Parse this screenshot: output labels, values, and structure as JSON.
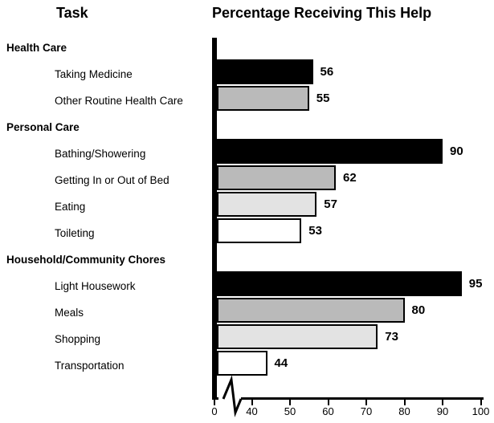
{
  "column_headers": {
    "task": "Task",
    "value": "Percentage Receiving This Help"
  },
  "chart_data": {
    "type": "bar",
    "orientation": "horizontal",
    "title": "Percentage Receiving This Help",
    "row_label_header": "Task",
    "x_ticks": [
      0,
      40,
      50,
      60,
      70,
      80,
      90,
      100
    ],
    "axis_break_between": [
      0,
      40
    ],
    "xlim_effective": [
      40,
      100
    ],
    "grid": false,
    "legend": false,
    "bar_colors_cycle": [
      "#000000",
      "#bababa",
      "#e3e3e3",
      "#ffffff"
    ],
    "groups": [
      {
        "label": "Health Care",
        "items": [
          {
            "label": "Taking Medicine",
            "value": 56,
            "color": "#000000"
          },
          {
            "label": "Other Routine Health Care",
            "value": 55,
            "color": "#bababa"
          }
        ]
      },
      {
        "label": "Personal Care",
        "items": [
          {
            "label": "Bathing/Showering",
            "value": 90,
            "color": "#000000"
          },
          {
            "label": "Getting In or Out of Bed",
            "value": 62,
            "color": "#bababa"
          },
          {
            "label": "Eating",
            "value": 57,
            "color": "#e3e3e3"
          },
          {
            "label": "Toileting",
            "value": 53,
            "color": "#ffffff"
          }
        ]
      },
      {
        "label": "Household/Community Chores",
        "items": [
          {
            "label": "Light Housework",
            "value": 95,
            "color": "#000000"
          },
          {
            "label": "Meals",
            "value": 80,
            "color": "#bababa"
          },
          {
            "label": "Shopping",
            "value": 73,
            "color": "#e3e3e3"
          },
          {
            "label": "Transportation",
            "value": 44,
            "color": "#ffffff"
          }
        ]
      }
    ]
  }
}
